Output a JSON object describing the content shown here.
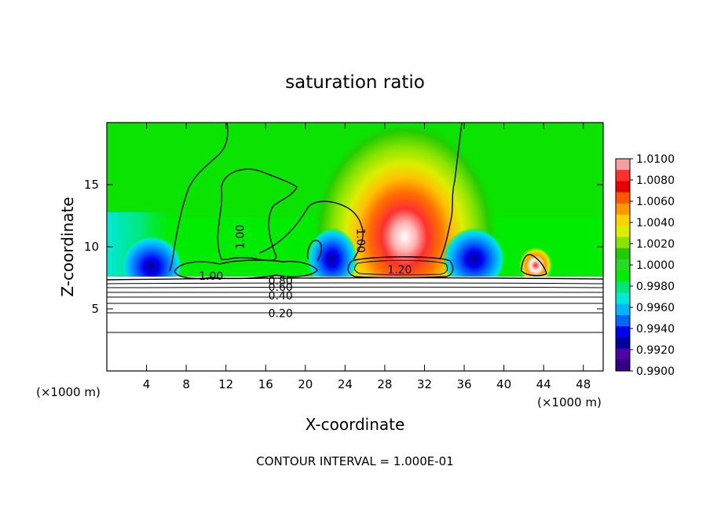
{
  "chart_data": {
    "type": "heatmap",
    "title": "saturation ratio",
    "xlabel": "X-coordinate",
    "ylabel": "Z-coordinate",
    "x_unit_left": "(×1000 m)",
    "x_unit_right": "(×1000 m)",
    "x_range": [
      0,
      50
    ],
    "y_range": [
      0,
      20
    ],
    "x_ticks": [
      4,
      8,
      12,
      16,
      20,
      24,
      28,
      32,
      36,
      40,
      44,
      48
    ],
    "y_ticks": [
      5,
      10,
      15
    ],
    "footer": "CONTOUR INTERVAL = 1.000E-01",
    "colorbar": {
      "min": 0.99,
      "max": 1.01,
      "labels": [
        "1.0100",
        "1.0080",
        "1.0060",
        "1.0040",
        "1.0020",
        "1.0000",
        "0.9980",
        "0.9960",
        "0.9940",
        "0.9920",
        "0.9900"
      ],
      "colors": [
        "#f4a0a0",
        "#ff3030",
        "#e80000",
        "#ff5a00",
        "#ff9900",
        "#ffd200",
        "#dcee00",
        "#88e400",
        "#22cc00",
        "#25dd25",
        "#00ec00",
        "#00e878",
        "#00e8d8",
        "#00b4ff",
        "#0066ff",
        "#0000ee",
        "#00009a",
        "#5000a8",
        "#300080"
      ]
    },
    "contour_labels": [
      {
        "text": "1.00",
        "x": 13.5,
        "y": 10.8,
        "rotation": -90
      },
      {
        "text": "1.00",
        "x": 25.5,
        "y": 10.5,
        "rotation": 90
      },
      {
        "text": "1.00",
        "x": 10.5,
        "y": 7.6,
        "rotation": 0
      },
      {
        "text": "1.20",
        "x": 29.5,
        "y": 8.1,
        "rotation": 0
      },
      {
        "text": "0.80",
        "x": 17.5,
        "y": 7.2,
        "rotation": 0
      },
      {
        "text": "0.60",
        "x": 17.5,
        "y": 6.7,
        "rotation": 0
      },
      {
        "text": "0.40",
        "x": 17.5,
        "y": 6.0,
        "rotation": 0
      },
      {
        "text": "0.20",
        "x": 17.5,
        "y": 4.6,
        "rotation": 0
      }
    ],
    "field": {
      "background": 1.0,
      "features": [
        {
          "kind": "maximum",
          "x": 30.0,
          "z": 10.8,
          "value": 1.0095
        },
        {
          "kind": "maximum",
          "x": 43.2,
          "z": 8.5,
          "value": 1.009
        },
        {
          "kind": "minimum",
          "x": 4.5,
          "z": 8.4,
          "value": 0.9935
        },
        {
          "kind": "minimum",
          "x": 22.7,
          "z": 9.0,
          "value": 0.992
        },
        {
          "kind": "minimum",
          "x": 37.0,
          "z": 9.0,
          "value": 0.9935
        }
      ]
    }
  }
}
